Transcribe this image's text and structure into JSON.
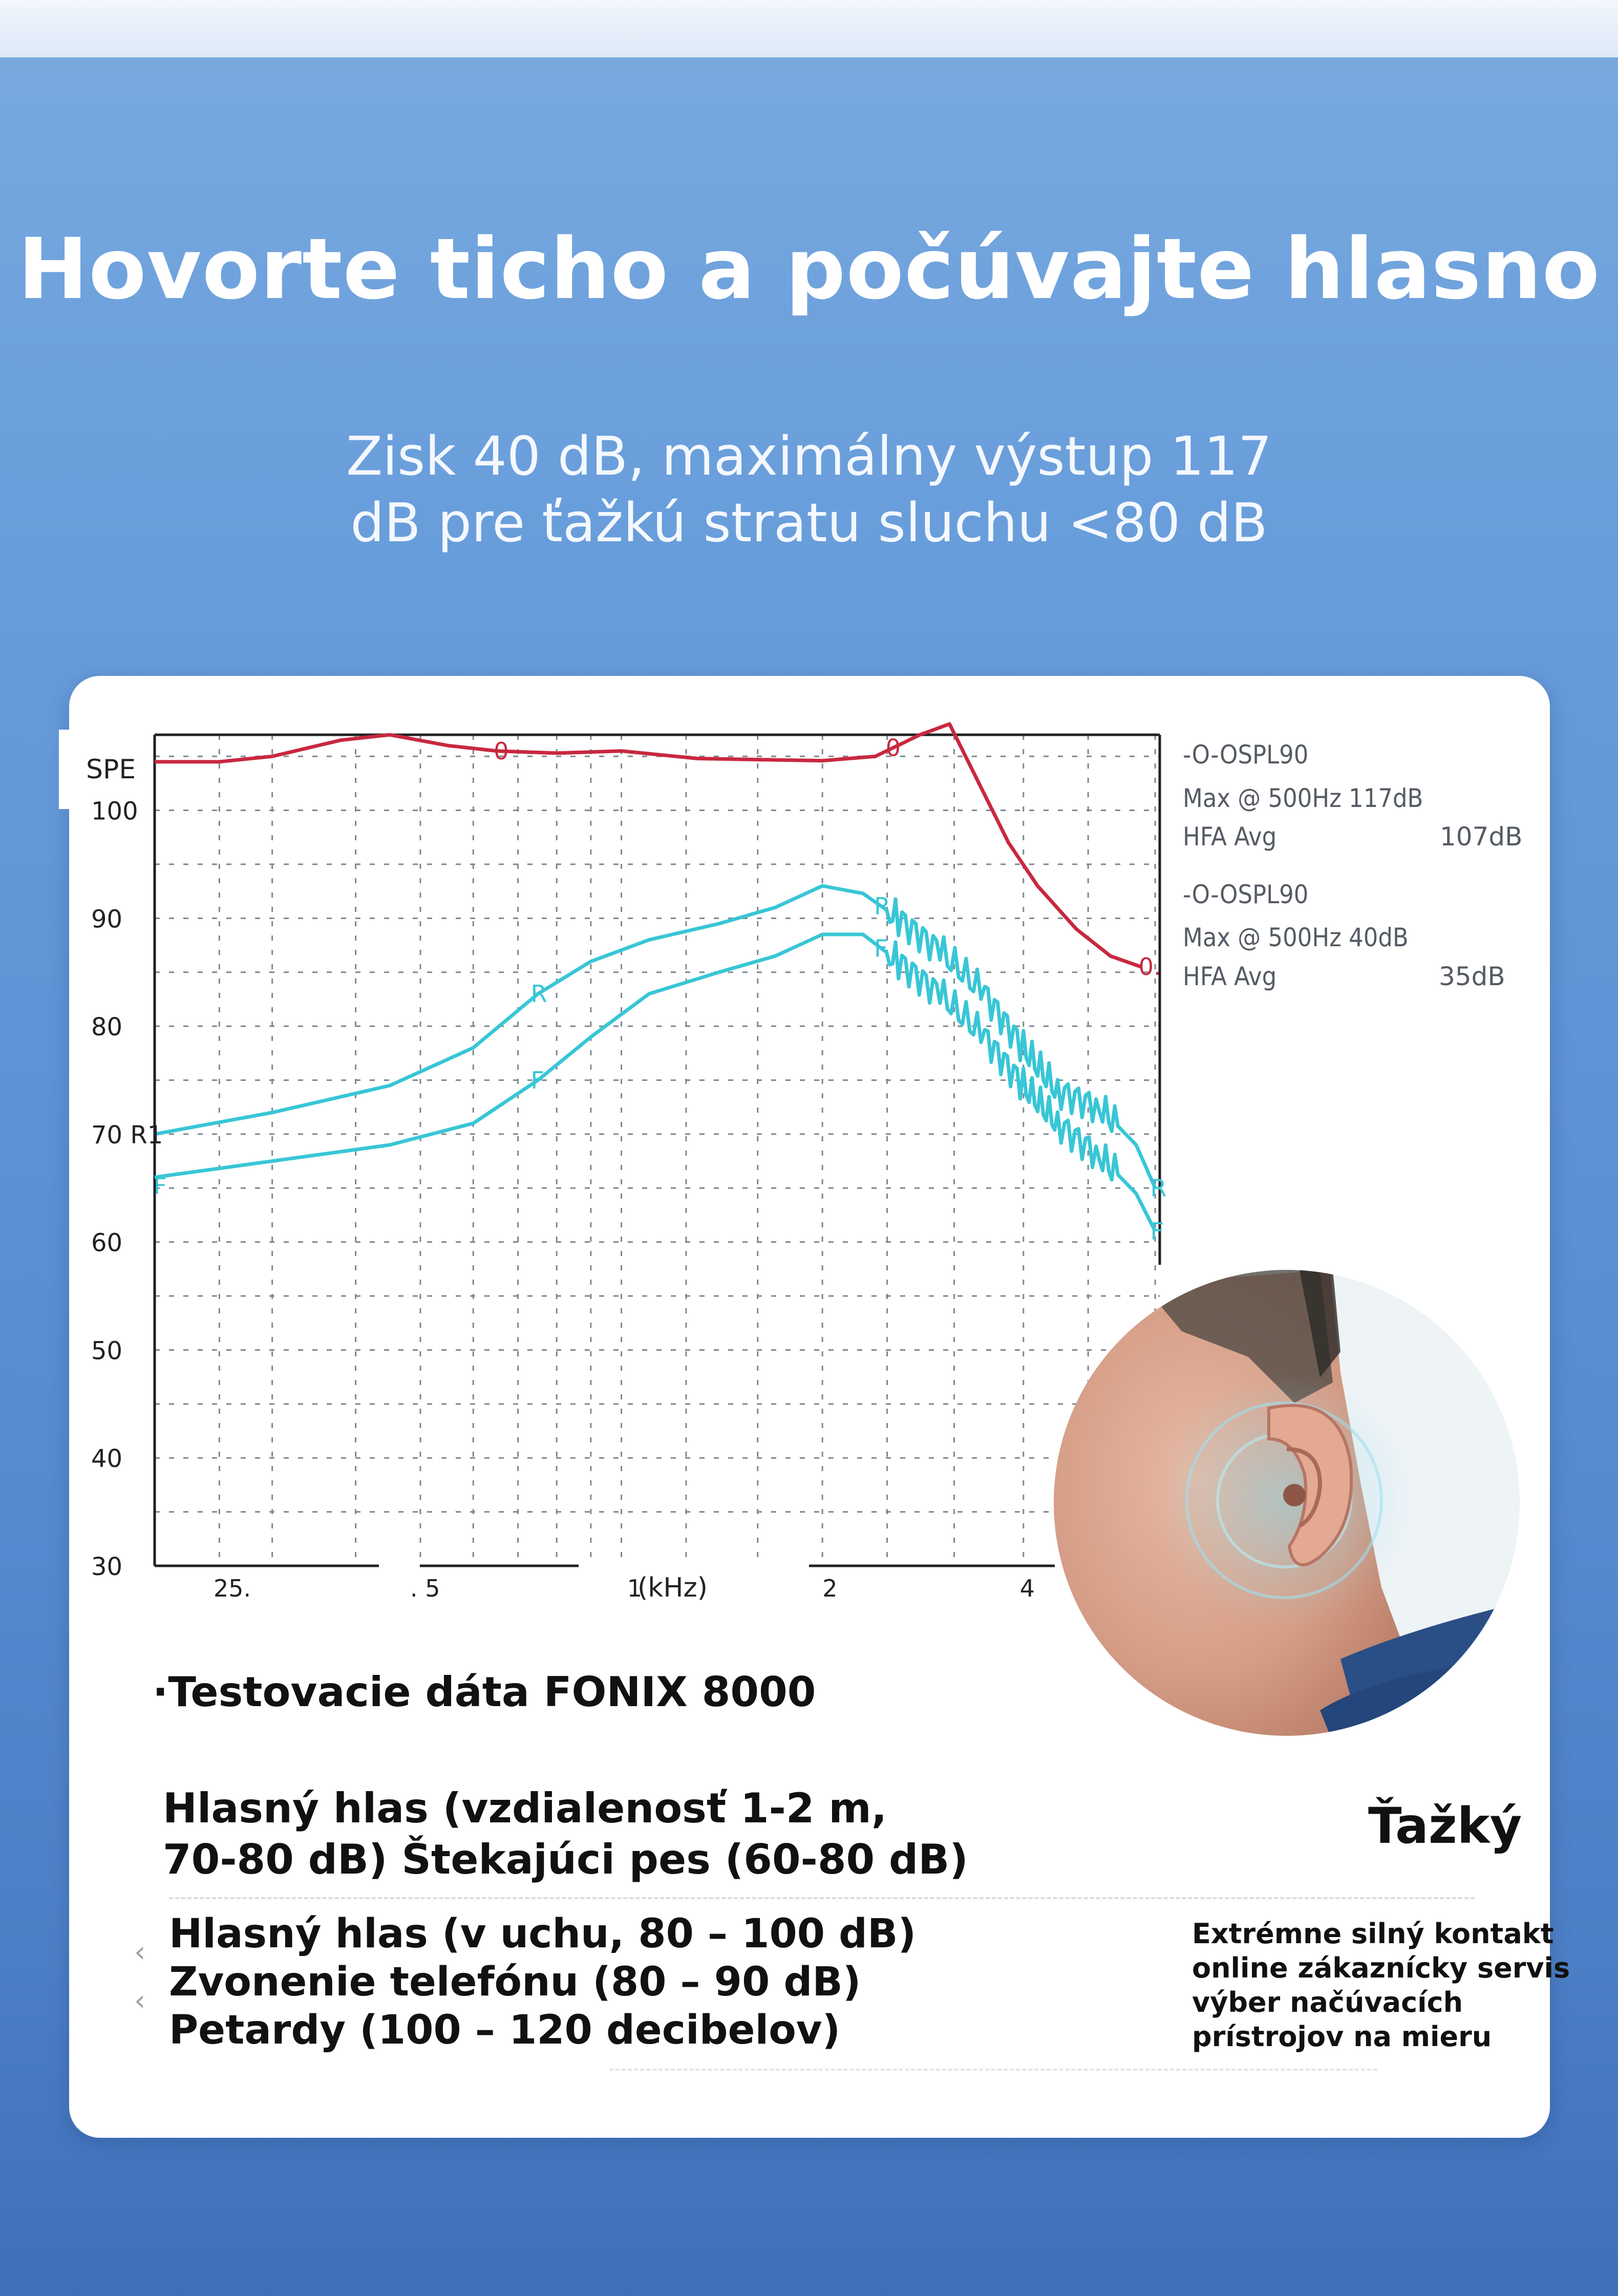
{
  "headline": "Hovorte ticho a počúvajte hlasno",
  "subheadline": [
    "Zisk 40 dB, maximálny výstup 117",
    "dB pre ťažkú stratu sluchu <80 dB"
  ],
  "chart_data": {
    "type": "line",
    "ylabel": "SPE",
    "xlabel": "(kHz)",
    "y_ticks": [
      "100",
      "90",
      "80",
      "70 R1",
      "60",
      "50",
      "40",
      "30"
    ],
    "x_ticks": [
      "25.",
      ". 5",
      "1",
      "2",
      "4"
    ],
    "ylim": [
      30,
      107
    ],
    "x_scale": "log",
    "xlim": [
      0.2,
      6.4
    ],
    "grid": true,
    "series": [
      {
        "name": "O",
        "color": "#c8283f",
        "x": [
          0.2,
          0.25,
          0.3,
          0.38,
          0.45,
          0.55,
          0.65,
          0.8,
          1.0,
          1.3,
          1.6,
          2.0,
          2.4,
          2.8,
          3.1,
          3.4,
          3.8,
          4.2,
          4.8,
          5.4,
          6.0
        ],
        "values": [
          104.5,
          104.5,
          105,
          106.5,
          107,
          106,
          105.5,
          105.3,
          105.5,
          104.8,
          104.7,
          104.6,
          105,
          107,
          108,
          103,
          97,
          93,
          89,
          86.5,
          85.5
        ],
        "markers": [
          {
            "x": 0.66,
            "label": "0"
          },
          {
            "x": 2.55,
            "label": "0"
          },
          {
            "x": 6.1,
            "label": "0."
          }
        ]
      },
      {
        "name": "R",
        "color": "#38c6d6",
        "x": [
          0.2,
          0.3,
          0.45,
          0.6,
          0.75,
          0.9,
          1.1,
          1.4,
          1.7,
          2.0,
          2.3,
          2.6,
          3.0,
          3.5,
          4.0,
          4.5,
          5.2,
          5.9,
          6.3
        ],
        "values": [
          70,
          72,
          74.5,
          78,
          83,
          86,
          88,
          89.5,
          91,
          93,
          92.3,
          90,
          87,
          83,
          78,
          74,
          72.5,
          69,
          65
        ],
        "markers": [
          {
            "x": 0.75,
            "label": "R"
          },
          {
            "x": 2.45,
            "label": "R."
          },
          {
            "x": 6.35,
            "label": "R"
          }
        ]
      },
      {
        "name": "F",
        "color": "#38c6d6",
        "x": [
          0.2,
          0.3,
          0.45,
          0.6,
          0.75,
          0.9,
          1.1,
          1.4,
          1.7,
          2.0,
          2.3,
          2.6,
          3.0,
          3.5,
          4.0,
          4.5,
          5.2,
          5.9,
          6.3
        ],
        "values": [
          66,
          67.5,
          69,
          71,
          75,
          79,
          83,
          85,
          86.5,
          88.5,
          88.5,
          86,
          83,
          79,
          74.5,
          71,
          68,
          64.5,
          61
        ],
        "markers": [
          {
            "x": 0.75,
            "label": "F"
          },
          {
            "x": 2.45,
            "label": "F."
          },
          {
            "x": 6.35,
            "label": "F"
          }
        ]
      }
    ],
    "corner_label": "F"
  },
  "legend": {
    "block1": {
      "title": "-O-OSPL90",
      "max": "Max @ 500Hz 117dB",
      "hfa": "HFA Avg",
      "hfa_val": "107dB"
    },
    "block2": {
      "title": "-O-OSPL90",
      "max": "Max @ 500Hz 40dB",
      "hfa": "HFA Avg",
      "hfa_val": "35dB"
    }
  },
  "test_data_label": "·Testovacie dáta FONIX 8000",
  "severity_label": "Ťažký",
  "loud_voice": [
    "Hlasný hlas (vzdialenosť 1-2 m,",
    "70-80 dB) Štekajúci pes (60-80 dB)"
  ],
  "very_loud": [
    "Hlasný hlas (v uchu, 80 – 100 dB)",
    "Zvonenie telefónu (80 – 90 dB)",
    "Petardy (100 – 120 decibelov)"
  ],
  "service_text": [
    "Extrémne silný kontakt",
    "online zákaznícky servis",
    "výber načúvacích",
    "prístrojov na mieru"
  ],
  "chevrons": [
    "‹",
    "‹"
  ]
}
